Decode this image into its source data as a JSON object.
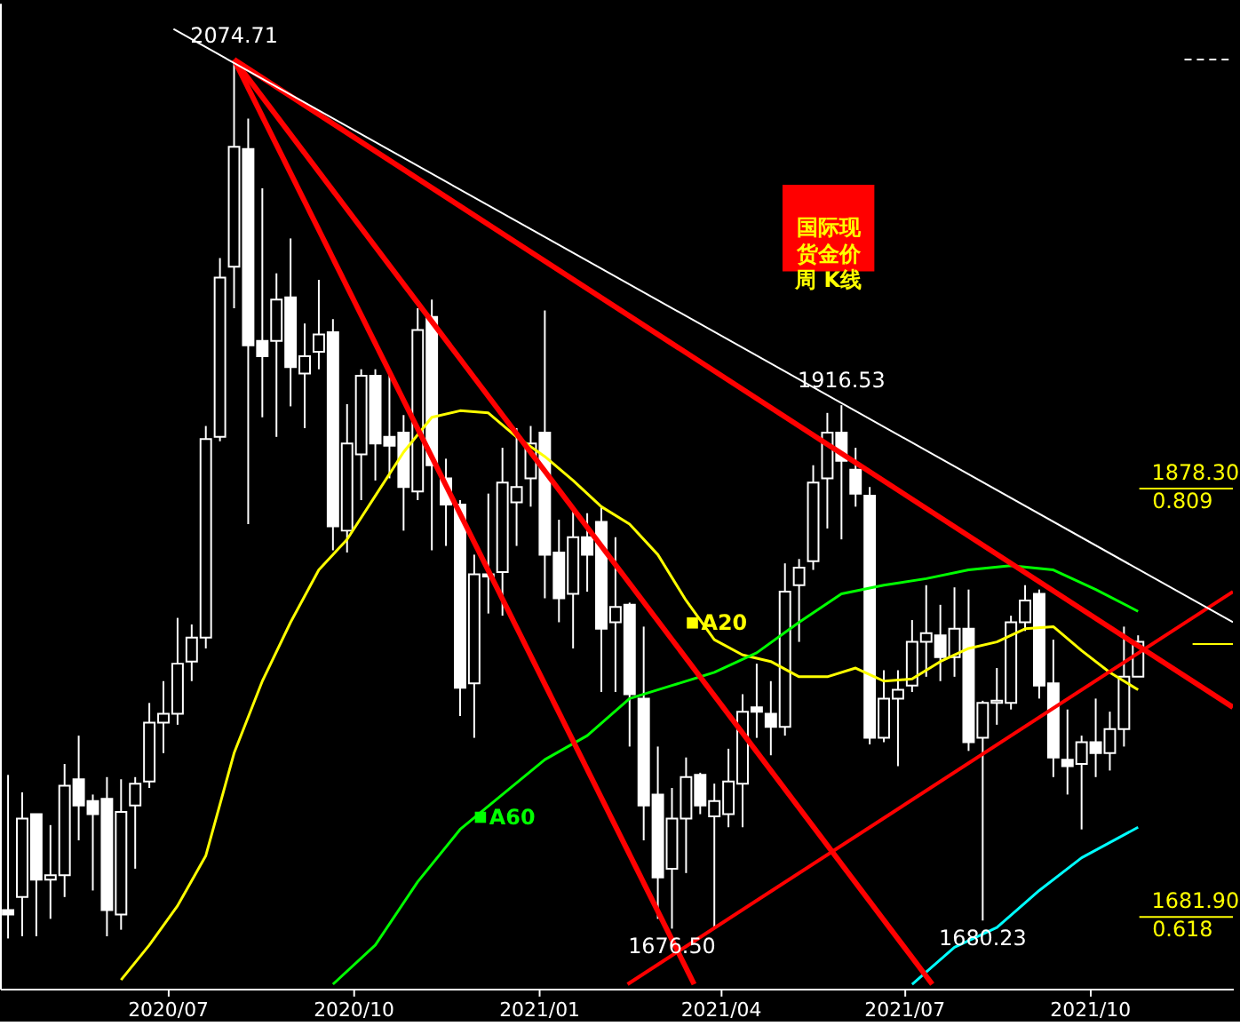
{
  "chart_data": {
    "type": "candlestick",
    "title": "国际现货金价周 K线",
    "x": [
      "2020-04-13",
      "2020-04-20",
      "2020-04-27",
      "2020-05-04",
      "2020-05-11",
      "2020-05-18",
      "2020-05-25",
      "2020-06-01",
      "2020-06-08",
      "2020-06-15",
      "2020-06-22",
      "2020-06-29",
      "2020-07-06",
      "2020-07-13",
      "2020-07-20",
      "2020-07-27",
      "2020-08-03",
      "2020-08-10",
      "2020-08-17",
      "2020-08-24",
      "2020-08-31",
      "2020-09-07",
      "2020-09-14",
      "2020-09-21",
      "2020-09-28",
      "2020-10-05",
      "2020-10-12",
      "2020-10-19",
      "2020-10-26",
      "2020-11-02",
      "2020-11-09",
      "2020-11-16",
      "2020-11-23",
      "2020-11-30",
      "2020-12-07",
      "2020-12-14",
      "2020-12-21",
      "2020-12-28",
      "2021-01-04",
      "2021-01-11",
      "2021-01-18",
      "2021-01-25",
      "2021-02-01",
      "2021-02-08",
      "2021-02-15",
      "2021-02-22",
      "2021-03-01",
      "2021-03-08",
      "2021-03-15",
      "2021-03-22",
      "2021-03-29",
      "2021-04-05",
      "2021-04-12",
      "2021-04-19",
      "2021-04-26",
      "2021-05-03",
      "2021-05-10",
      "2021-05-17",
      "2021-05-24",
      "2021-05-31",
      "2021-06-07",
      "2021-06-14",
      "2021-06-21",
      "2021-06-28",
      "2021-07-05",
      "2021-07-12",
      "2021-07-19",
      "2021-07-26",
      "2021-08-02",
      "2021-08-09",
      "2021-08-16",
      "2021-08-23",
      "2021-08-30",
      "2021-09-06",
      "2021-09-13",
      "2021-09-20",
      "2021-09-27",
      "2021-10-04",
      "2021-10-11",
      "2021-10-18",
      "2021-10-25"
    ],
    "ohlc": [
      [
        1685,
        1747,
        1672,
        1683
      ],
      [
        1691,
        1739,
        1673,
        1727
      ],
      [
        1729,
        1729,
        1673,
        1699
      ],
      [
        1699,
        1724,
        1681,
        1701
      ],
      [
        1701,
        1752,
        1691,
        1742
      ],
      [
        1745,
        1765,
        1717,
        1733
      ],
      [
        1735,
        1738,
        1694,
        1729
      ],
      [
        1736,
        1746,
        1673,
        1685
      ],
      [
        1683,
        1745,
        1676,
        1730
      ],
      [
        1733,
        1746,
        1704,
        1743
      ],
      [
        1744,
        1780,
        1741,
        1771
      ],
      [
        1771,
        1790,
        1757,
        1775
      ],
      [
        1775,
        1819,
        1770,
        1798
      ],
      [
        1799,
        1816,
        1790,
        1810
      ],
      [
        1810,
        1907,
        1805,
        1901
      ],
      [
        1902,
        1984,
        1900,
        1975
      ],
      [
        1980,
        2074.71,
        1961,
        2035
      ],
      [
        2034,
        2048,
        1862,
        1944
      ],
      [
        1946,
        2016,
        1911,
        1939
      ],
      [
        1946,
        1977,
        1902,
        1965
      ],
      [
        1966,
        1993,
        1916,
        1934
      ],
      [
        1931,
        1954,
        1906,
        1939
      ],
      [
        1941,
        1974,
        1933,
        1949
      ],
      [
        1950,
        1956,
        1850,
        1861
      ],
      [
        1859,
        1917,
        1849,
        1899
      ],
      [
        1894,
        1933,
        1873,
        1930
      ],
      [
        1930,
        1933,
        1882,
        1899
      ],
      [
        1902,
        1931,
        1883,
        1898
      ],
      [
        1904,
        1912,
        1859,
        1879
      ],
      [
        1877,
        1961,
        1873,
        1951
      ],
      [
        1957,
        1965,
        1850,
        1889
      ],
      [
        1883,
        1892,
        1852,
        1871
      ],
      [
        1871,
        1873,
        1774,
        1787
      ],
      [
        1789,
        1848,
        1764,
        1839
      ],
      [
        1839,
        1876,
        1821,
        1838
      ],
      [
        1840,
        1897,
        1820,
        1881
      ],
      [
        1872,
        1906,
        1852,
        1879
      ],
      [
        1883,
        1907,
        1870,
        1899
      ],
      [
        1904,
        1960,
        1828,
        1848
      ],
      [
        1849,
        1864,
        1817,
        1828
      ],
      [
        1830,
        1868,
        1805,
        1856
      ],
      [
        1856,
        1867,
        1831,
        1848
      ],
      [
        1863,
        1870,
        1785,
        1814
      ],
      [
        1817,
        1856,
        1785,
        1824
      ],
      [
        1825,
        1826,
        1760,
        1784
      ],
      [
        1782,
        1815,
        1717,
        1733
      ],
      [
        1738,
        1760,
        1681,
        1700
      ],
      [
        1704,
        1741,
        1676.5,
        1727
      ],
      [
        1727,
        1755,
        1702,
        1746
      ],
      [
        1747,
        1748,
        1729,
        1733
      ],
      [
        1728,
        1743,
        1677,
        1735
      ],
      [
        1729,
        1759,
        1723,
        1744
      ],
      [
        1743,
        1784,
        1723,
        1776
      ],
      [
        1778,
        1798,
        1764,
        1776
      ],
      [
        1775,
        1790,
        1756,
        1769
      ],
      [
        1769,
        1844,
        1765,
        1831
      ],
      [
        1834,
        1846,
        1808,
        1842
      ],
      [
        1845,
        1889,
        1841,
        1881
      ],
      [
        1883,
        1913,
        1860,
        1904
      ],
      [
        1904,
        1916.53,
        1855,
        1891
      ],
      [
        1887,
        1897,
        1870,
        1876
      ],
      [
        1875,
        1879,
        1761,
        1764
      ],
      [
        1764,
        1795,
        1762,
        1782
      ],
      [
        1782,
        1795,
        1751,
        1786
      ],
      [
        1788,
        1818,
        1785,
        1808
      ],
      [
        1808,
        1834,
        1792,
        1812
      ],
      [
        1811,
        1825,
        1790,
        1801
      ],
      [
        1801,
        1833,
        1792,
        1814
      ],
      [
        1814,
        1832,
        1758,
        1762
      ],
      [
        1764,
        1781,
        1680.23,
        1780
      ],
      [
        1780,
        1796,
        1770,
        1781
      ],
      [
        1780,
        1820,
        1777,
        1817
      ],
      [
        1817,
        1834,
        1813,
        1827
      ],
      [
        1830,
        1832,
        1782,
        1788
      ],
      [
        1789,
        1809,
        1746,
        1755
      ],
      [
        1754,
        1777,
        1738,
        1751
      ],
      [
        1752,
        1765,
        1722,
        1762
      ],
      [
        1762,
        1782,
        1746,
        1757
      ],
      [
        1757,
        1776,
        1749,
        1768
      ],
      [
        1768,
        1815,
        1760,
        1792
      ],
      [
        1792,
        1811,
        1792,
        1808
      ]
    ],
    "xlim": [
      "2020-04-09",
      "2021-12-11"
    ],
    "ylim": [
      1649,
      2101
    ],
    "xticks": [
      {
        "value": "2020-07-01",
        "label": "2020/07"
      },
      {
        "value": "2020-10-01",
        "label": "2020/10"
      },
      {
        "value": "2021-01-01",
        "label": "2021/01"
      },
      {
        "value": "2021-04-01",
        "label": "2021/04"
      },
      {
        "value": "2021-07-01",
        "label": "2021/07"
      },
      {
        "value": "2021-10-01",
        "label": "2021/10"
      }
    ],
    "tick_labels": "x",
    "series": [
      {
        "name": "A20",
        "type": "line",
        "color": "#ffff00",
        "x": [
          "2020-06-08",
          "2020-06-22",
          "2020-07-06",
          "2020-07-20",
          "2020-08-03",
          "2020-08-17",
          "2020-08-31",
          "2020-09-14",
          "2020-09-28",
          "2020-10-12",
          "2020-10-26",
          "2020-11-09",
          "2020-11-23",
          "2020-12-07",
          "2020-12-21",
          "2021-01-04",
          "2021-01-18",
          "2021-02-01",
          "2021-02-15",
          "2021-03-01",
          "2021-03-15",
          "2021-03-29",
          "2021-04-12",
          "2021-04-26",
          "2021-05-10",
          "2021-05-24",
          "2021-06-07",
          "2021-06-21",
          "2021-07-05",
          "2021-07-19",
          "2021-08-02",
          "2021-08-16",
          "2021-08-30",
          "2021-09-13",
          "2021-09-27",
          "2021-10-11",
          "2021-10-25"
        ],
        "values": [
          1653,
          1669,
          1687,
          1710,
          1757,
          1790,
          1817,
          1841,
          1855,
          1875,
          1895,
          1911,
          1914,
          1913,
          1902,
          1893,
          1882,
          1870,
          1862,
          1848,
          1827,
          1809,
          1802,
          1799,
          1792,
          1792,
          1796,
          1790,
          1791,
          1799,
          1805,
          1808,
          1814,
          1815,
          1804,
          1794,
          1786
        ]
      },
      {
        "name": "A60",
        "type": "line",
        "color": "#00ff00",
        "x": [
          "2020-09-21",
          "2020-10-12",
          "2020-11-02",
          "2020-11-23",
          "2020-12-14",
          "2021-01-04",
          "2021-01-25",
          "2021-02-15",
          "2021-03-08",
          "2021-03-29",
          "2021-04-19",
          "2021-05-10",
          "2021-05-31",
          "2021-06-21",
          "2021-07-12",
          "2021-08-02",
          "2021-08-23",
          "2021-09-13",
          "2021-10-04",
          "2021-10-25"
        ],
        "values": [
          1651,
          1669,
          1698,
          1722,
          1738,
          1754,
          1765,
          1782,
          1788,
          1794,
          1803,
          1817,
          1830,
          1834,
          1837,
          1841,
          1843,
          1841,
          1832,
          1822
        ]
      },
      {
        "type": "line",
        "color": "#00ffff",
        "x": [
          "2021-07-05",
          "2021-07-26",
          "2021-08-16",
          "2021-09-06",
          "2021-09-27",
          "2021-10-25"
        ],
        "values": [
          1651,
          1668,
          1677,
          1694,
          1709,
          1723
        ]
      },
      {
        "type": "line",
        "color": "#ff0000",
        "x": [
          "2020-08-03",
          "2021-12-11"
        ],
        "values": [
          2075,
          1778
        ]
      },
      {
        "type": "line",
        "color": "#ff0000",
        "x": [
          "2020-08-03",
          "2021-07-15"
        ],
        "values": [
          2075,
          1651
        ]
      },
      {
        "type": "line",
        "color": "#ff0000",
        "x": [
          "2020-08-03",
          "2021-03-19"
        ],
        "values": [
          2075,
          1651
        ]
      },
      {
        "type": "line",
        "color": "#ff0000",
        "x": [
          "2021-02-14",
          "2021-12-11"
        ],
        "values": [
          1651,
          1831
        ]
      },
      {
        "type": "line",
        "color": "#ffffff",
        "x": [
          "2020-07-04",
          "2021-12-11"
        ],
        "values": [
          2089,
          1817
        ]
      },
      {
        "type": "line",
        "color": "#ffffff",
        "line_style": "dashed",
        "x": [
          "2021-11-17",
          "2021-12-11"
        ],
        "values": [
          2075,
          2075
        ]
      },
      {
        "type": "line",
        "color": "#ffff00",
        "x": [
          "2021-11-21",
          "2021-12-11"
        ],
        "values": [
          1807,
          1807
        ]
      }
    ],
    "legend": "center",
    "ref_lines": [
      {
        "axis": "y",
        "value": 1878.3,
        "label": "1878.30",
        "color": "#ffff00"
      },
      {
        "axis": "y",
        "value": 1681.9,
        "label": "1681.90",
        "color": "#ffff00"
      }
    ],
    "annotations": [
      {
        "text": "2074.71",
        "x": "2020-08-03",
        "y": 2074.71
      },
      {
        "text": "1916.53",
        "x": "2021-05-31",
        "y": 1916.53
      },
      {
        "text": "1676.50",
        "x": "2021-03-08",
        "y": 1676.5
      },
      {
        "text": "1680.23",
        "x": "2021-08-09",
        "y": 1680.23
      },
      {
        "text": "0.809",
        "x": "2021-11-01",
        "y": 1878.3
      },
      {
        "text": "0.618",
        "x": "2021-11-01",
        "y": 1681.9
      }
    ]
  }
}
